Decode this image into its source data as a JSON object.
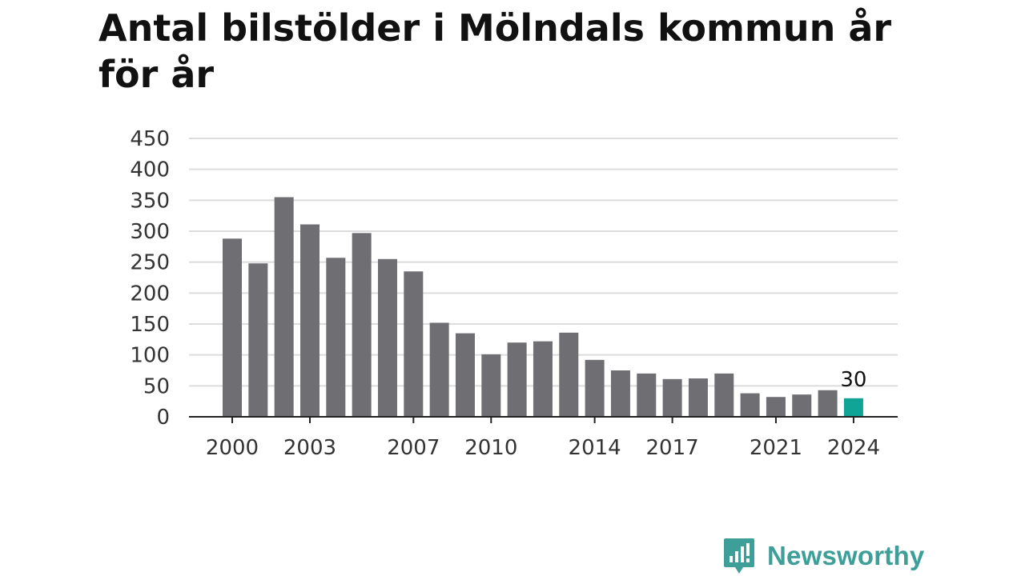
{
  "chart_data": {
    "type": "bar",
    "title": "Antal bilstölder i Mölndals kommun år för år",
    "categories": [
      "2000",
      "2001",
      "2002",
      "2003",
      "2004",
      "2005",
      "2006",
      "2007",
      "2008",
      "2009",
      "2010",
      "2011",
      "2012",
      "2013",
      "2014",
      "2015",
      "2016",
      "2017",
      "2018",
      "2019",
      "2020",
      "2021",
      "2022",
      "2023",
      "2024"
    ],
    "values": [
      288,
      248,
      355,
      311,
      257,
      297,
      255,
      235,
      152,
      135,
      101,
      120,
      122,
      136,
      92,
      75,
      70,
      61,
      62,
      70,
      38,
      32,
      36,
      43,
      30
    ],
    "x_tick_labels": [
      "2000",
      "2003",
      "2007",
      "2010",
      "2014",
      "2017",
      "2021",
      "2024"
    ],
    "y_ticks": [
      0,
      50,
      100,
      150,
      200,
      250,
      300,
      350,
      400,
      450
    ],
    "ylim": [
      0,
      450
    ],
    "xlabel": "",
    "ylabel": "",
    "grid": true,
    "highlight": {
      "category": "2024",
      "label": "30"
    },
    "colors": {
      "bar": "#6f6e73",
      "highlight": "#10a497",
      "grid": "#dcdcdc",
      "axis": "#222222"
    }
  },
  "logo": {
    "text": "Newsworthy",
    "color": "#3e9e98"
  }
}
